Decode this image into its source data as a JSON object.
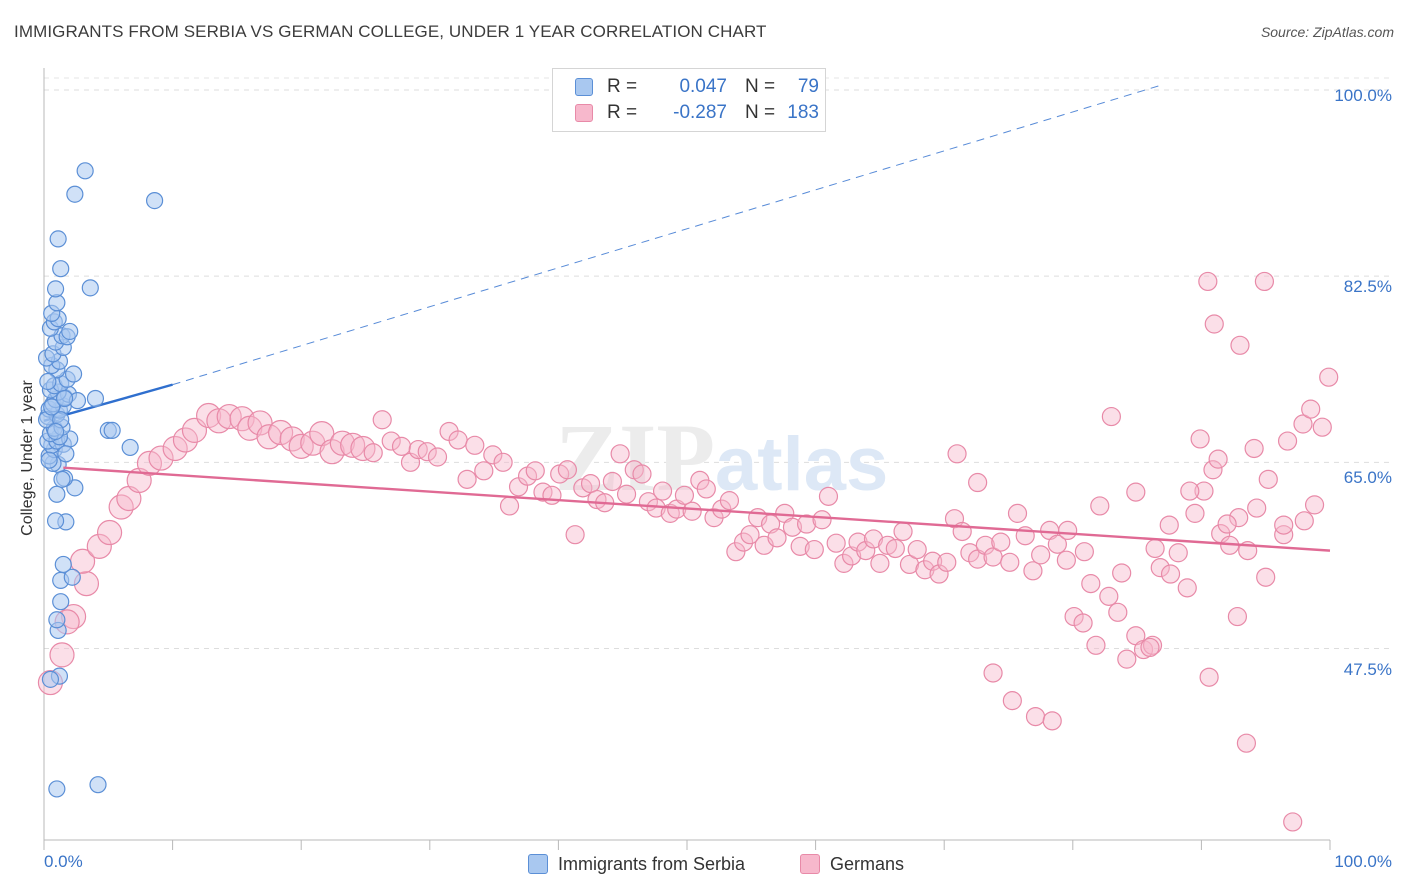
{
  "chart_data": {
    "type": "scatter",
    "title": "IMMIGRANTS FROM SERBIA VS GERMAN COLLEGE, UNDER 1 YEAR CORRELATION CHART",
    "source": "Source: ZipAtlas.com",
    "watermark": "ZIPatlas",
    "xlabel": "",
    "ylabel": "College, Under 1 year",
    "xlim": [
      0,
      100
    ],
    "ylim": [
      29.5,
      101.5
    ],
    "x_tick_labels": [
      "0.0%",
      "100.0%"
    ],
    "y_ticks": [
      47.5,
      65.0,
      82.5,
      100.0
    ],
    "y_tick_labels": [
      "47.5%",
      "65.0%",
      "82.5%",
      "100.0%"
    ],
    "grid": "horizontal dashed",
    "legend": {
      "position": "top-center",
      "rows": [
        {
          "label": "R =",
          "r": "0.047",
          "n_label": "N =",
          "n": "79"
        },
        {
          "label": "R =",
          "r": "-0.287",
          "n_label": "N =",
          "n": "183"
        }
      ]
    },
    "bottom_legend": [
      "Immigrants from Serbia",
      "Germans"
    ],
    "colors": {
      "serbia_fill": "#a9c8f0",
      "serbia_stroke": "#5b8fd6",
      "serbia_line": "#2f6fce",
      "germans_fill": "#f7b8cc",
      "germans_stroke": "#e88aa8",
      "germans_line": "#e06a94",
      "tick_text": "#3a74c7"
    },
    "series": [
      {
        "name": "Immigrants from Serbia",
        "trend": {
          "x": [
            0,
            10
          ],
          "y": [
            68.9,
            72.3
          ],
          "dashed_extension_to": [
            87,
            100.5
          ]
        },
        "points": [
          [
            1.0,
            34.3
          ],
          [
            4.2,
            34.7
          ],
          [
            1.2,
            44.9
          ],
          [
            0.5,
            44.6
          ],
          [
            1.1,
            49.2
          ],
          [
            1.0,
            50.2
          ],
          [
            1.3,
            51.9
          ],
          [
            1.3,
            53.9
          ],
          [
            2.2,
            54.2
          ],
          [
            1.5,
            55.4
          ],
          [
            1.7,
            59.4
          ],
          [
            0.9,
            59.5
          ],
          [
            1.0,
            62.0
          ],
          [
            2.4,
            62.6
          ],
          [
            1.6,
            63.5
          ],
          [
            1.1,
            64.8
          ],
          [
            1.4,
            63.4
          ],
          [
            0.7,
            64.9
          ],
          [
            0.4,
            65.6
          ],
          [
            0.8,
            66.2
          ],
          [
            0.6,
            66.6
          ],
          [
            1.5,
            66.7
          ],
          [
            0.3,
            67.0
          ],
          [
            1.0,
            67.0
          ],
          [
            2.0,
            67.2
          ],
          [
            1.2,
            67.4
          ],
          [
            0.5,
            67.7
          ],
          [
            0.8,
            68.2
          ],
          [
            5.0,
            68.0
          ],
          [
            5.3,
            68.0
          ],
          [
            1.4,
            68.3
          ],
          [
            0.3,
            69.3
          ],
          [
            1.0,
            69.5
          ],
          [
            1.2,
            69.9
          ],
          [
            0.4,
            70.0
          ],
          [
            1.5,
            70.3
          ],
          [
            0.7,
            70.5
          ],
          [
            0.9,
            70.9
          ],
          [
            1.6,
            71.1
          ],
          [
            1.9,
            71.4
          ],
          [
            1.1,
            71.6
          ],
          [
            0.5,
            71.8
          ],
          [
            0.8,
            72.2
          ],
          [
            1.3,
            72.4
          ],
          [
            1.8,
            72.8
          ],
          [
            2.3,
            73.3
          ],
          [
            1.0,
            73.7
          ],
          [
            4.0,
            71.0
          ],
          [
            0.6,
            74.1
          ],
          [
            1.2,
            74.5
          ],
          [
            0.2,
            74.8
          ],
          [
            0.7,
            75.2
          ],
          [
            1.5,
            75.8
          ],
          [
            0.9,
            76.3
          ],
          [
            1.4,
            76.9
          ],
          [
            1.8,
            76.8
          ],
          [
            0.5,
            77.6
          ],
          [
            2.0,
            77.3
          ],
          [
            0.8,
            78.2
          ],
          [
            1.1,
            78.5
          ],
          [
            0.6,
            79.0
          ],
          [
            1.0,
            80.0
          ],
          [
            0.9,
            81.3
          ],
          [
            3.6,
            81.4
          ],
          [
            1.3,
            83.2
          ],
          [
            1.1,
            86.0
          ],
          [
            2.4,
            90.2
          ],
          [
            3.2,
            92.4
          ],
          [
            8.6,
            89.6
          ],
          [
            6.7,
            66.4
          ],
          [
            0.4,
            65.2
          ],
          [
            1.7,
            65.8
          ],
          [
            0.2,
            69.0
          ],
          [
            1.3,
            69.0
          ],
          [
            0.6,
            70.2
          ],
          [
            2.6,
            70.8
          ],
          [
            0.3,
            72.6
          ],
          [
            0.9,
            67.9
          ],
          [
            1.6,
            71.0
          ]
        ]
      },
      {
        "name": "Germans",
        "trend": {
          "x": [
            1.5,
            100
          ],
          "y": [
            64.5,
            56.7
          ]
        },
        "points": [
          [
            0.5,
            44.3
          ],
          [
            1.4,
            46.9
          ],
          [
            2.3,
            50.5
          ],
          [
            1.8,
            50.0
          ],
          [
            3.3,
            53.6
          ],
          [
            3.0,
            55.7
          ],
          [
            4.3,
            57.1
          ],
          [
            5.1,
            58.4
          ],
          [
            6.0,
            60.8
          ],
          [
            6.6,
            61.6
          ],
          [
            7.4,
            63.3
          ],
          [
            8.2,
            64.9
          ],
          [
            9.1,
            65.4
          ],
          [
            10.2,
            66.3
          ],
          [
            11.0,
            67.1
          ],
          [
            11.7,
            68.0
          ],
          [
            12.8,
            69.4
          ],
          [
            13.6,
            68.9
          ],
          [
            14.4,
            69.3
          ],
          [
            15.4,
            69.1
          ],
          [
            16.0,
            68.2
          ],
          [
            16.8,
            68.7
          ],
          [
            17.5,
            67.4
          ],
          [
            18.4,
            67.8
          ],
          [
            19.3,
            67.2
          ],
          [
            20.0,
            66.5
          ],
          [
            20.9,
            66.8
          ],
          [
            21.6,
            67.7
          ],
          [
            22.4,
            66.0
          ],
          [
            23.2,
            66.8
          ],
          [
            24.0,
            66.6
          ],
          [
            24.8,
            66.3
          ],
          [
            25.6,
            65.9
          ],
          [
            26.3,
            69.0
          ],
          [
            27.0,
            67.0
          ],
          [
            27.8,
            66.5
          ],
          [
            28.5,
            65.0
          ],
          [
            29.1,
            66.2
          ],
          [
            29.8,
            66.0
          ],
          [
            30.6,
            65.5
          ],
          [
            31.5,
            67.9
          ],
          [
            32.2,
            67.1
          ],
          [
            32.9,
            63.4
          ],
          [
            33.5,
            66.6
          ],
          [
            34.2,
            64.2
          ],
          [
            34.9,
            65.7
          ],
          [
            35.7,
            65.0
          ],
          [
            36.2,
            60.9
          ],
          [
            36.9,
            62.7
          ],
          [
            37.6,
            63.7
          ],
          [
            38.2,
            64.2
          ],
          [
            38.8,
            62.2
          ],
          [
            39.5,
            61.9
          ],
          [
            40.1,
            63.9
          ],
          [
            40.7,
            64.3
          ],
          [
            41.3,
            58.2
          ],
          [
            41.9,
            62.6
          ],
          [
            42.5,
            63.0
          ],
          [
            43.0,
            61.5
          ],
          [
            43.6,
            61.2
          ],
          [
            44.2,
            63.2
          ],
          [
            44.8,
            65.8
          ],
          [
            45.3,
            62.0
          ],
          [
            45.9,
            64.3
          ],
          [
            46.5,
            63.9
          ],
          [
            47.0,
            61.3
          ],
          [
            47.6,
            60.7
          ],
          [
            48.1,
            62.3
          ],
          [
            48.7,
            60.2
          ],
          [
            49.2,
            60.6
          ],
          [
            49.8,
            61.9
          ],
          [
            50.4,
            60.4
          ],
          [
            51.0,
            63.3
          ],
          [
            51.5,
            62.5
          ],
          [
            52.1,
            59.8
          ],
          [
            52.7,
            60.6
          ],
          [
            53.3,
            61.4
          ],
          [
            53.8,
            56.6
          ],
          [
            54.4,
            57.5
          ],
          [
            54.9,
            58.2
          ],
          [
            55.5,
            59.8
          ],
          [
            56.0,
            57.2
          ],
          [
            56.5,
            59.2
          ],
          [
            57.0,
            57.9
          ],
          [
            57.6,
            60.2
          ],
          [
            58.2,
            58.9
          ],
          [
            58.8,
            57.1
          ],
          [
            59.3,
            59.2
          ],
          [
            59.9,
            56.8
          ],
          [
            60.5,
            59.6
          ],
          [
            61.0,
            61.8
          ],
          [
            61.6,
            57.4
          ],
          [
            62.2,
            55.5
          ],
          [
            62.8,
            56.2
          ],
          [
            63.3,
            57.5
          ],
          [
            63.9,
            56.7
          ],
          [
            64.5,
            57.8
          ],
          [
            65.0,
            55.5
          ],
          [
            65.6,
            57.2
          ],
          [
            66.2,
            56.9
          ],
          [
            66.8,
            58.5
          ],
          [
            67.3,
            55.4
          ],
          [
            67.9,
            56.8
          ],
          [
            68.5,
            54.9
          ],
          [
            69.1,
            55.7
          ],
          [
            69.6,
            54.5
          ],
          [
            70.2,
            55.6
          ],
          [
            70.8,
            59.7
          ],
          [
            71.4,
            58.5
          ],
          [
            72.0,
            56.5
          ],
          [
            72.6,
            55.9
          ],
          [
            73.2,
            57.2
          ],
          [
            73.8,
            56.1
          ],
          [
            74.4,
            57.5
          ],
          [
            75.1,
            55.6
          ],
          [
            75.7,
            60.2
          ],
          [
            76.3,
            58.1
          ],
          [
            76.9,
            54.8
          ],
          [
            77.5,
            56.3
          ],
          [
            78.2,
            58.6
          ],
          [
            78.8,
            57.3
          ],
          [
            79.5,
            55.8
          ],
          [
            80.1,
            50.5
          ],
          [
            80.8,
            49.9
          ],
          [
            81.4,
            53.6
          ],
          [
            82.1,
            60.9
          ],
          [
            82.8,
            52.4
          ],
          [
            83.5,
            50.9
          ],
          [
            84.2,
            46.5
          ],
          [
            84.9,
            48.7
          ],
          [
            85.5,
            47.4
          ],
          [
            86.2,
            47.8
          ],
          [
            86.8,
            55.1
          ],
          [
            87.5,
            59.1
          ],
          [
            88.2,
            56.5
          ],
          [
            88.9,
            53.2
          ],
          [
            89.5,
            60.2
          ],
          [
            90.2,
            62.3
          ],
          [
            90.9,
            64.3
          ],
          [
            91.5,
            58.3
          ],
          [
            92.2,
            57.2
          ],
          [
            92.9,
            59.8
          ],
          [
            93.6,
            56.7
          ],
          [
            94.3,
            60.7
          ],
          [
            95.0,
            54.2
          ],
          [
            71.0,
            65.8
          ],
          [
            72.6,
            63.1
          ],
          [
            73.8,
            45.2
          ],
          [
            75.3,
            42.6
          ],
          [
            77.1,
            41.1
          ],
          [
            78.4,
            40.7
          ],
          [
            79.6,
            58.6
          ],
          [
            80.9,
            56.6
          ],
          [
            81.8,
            47.8
          ],
          [
            83.0,
            69.3
          ],
          [
            83.8,
            54.6
          ],
          [
            84.9,
            62.2
          ],
          [
            86.0,
            47.6
          ],
          [
            86.4,
            56.9
          ],
          [
            87.6,
            54.5
          ],
          [
            89.1,
            62.3
          ],
          [
            89.9,
            67.2
          ],
          [
            90.6,
            44.8
          ],
          [
            91.3,
            65.3
          ],
          [
            92.0,
            59.2
          ],
          [
            92.8,
            50.5
          ],
          [
            93.5,
            38.6
          ],
          [
            94.1,
            66.3
          ],
          [
            95.2,
            63.4
          ],
          [
            96.4,
            58.2
          ],
          [
            97.1,
            31.2
          ],
          [
            98.0,
            59.5
          ],
          [
            98.8,
            61.0
          ],
          [
            99.4,
            68.3
          ],
          [
            90.5,
            82.0
          ],
          [
            94.9,
            82.0
          ],
          [
            91.0,
            78.0
          ],
          [
            93.0,
            76.0
          ],
          [
            99.9,
            73.0
          ],
          [
            96.4,
            59.1
          ],
          [
            96.7,
            67.0
          ],
          [
            97.9,
            68.6
          ],
          [
            98.5,
            70.0
          ]
        ]
      }
    ]
  }
}
